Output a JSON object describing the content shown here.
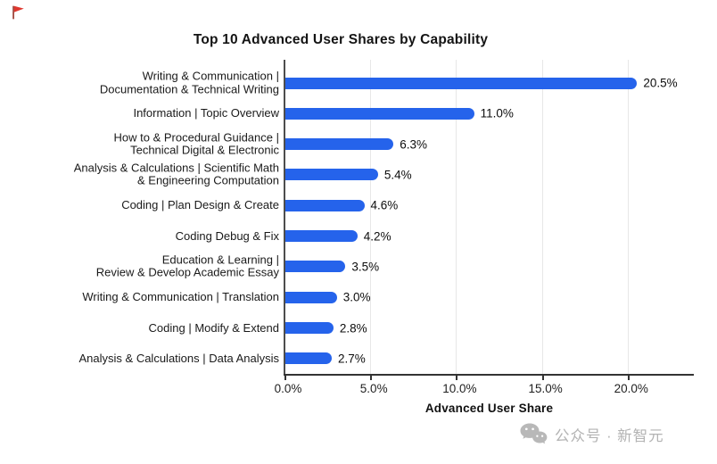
{
  "chart_data": {
    "type": "bar",
    "orientation": "horizontal",
    "title": "Top 10 Advanced User Shares by Capability",
    "xlabel": "Advanced User Share",
    "ylabel": "",
    "grid": true,
    "xlim": [
      0,
      23.8
    ],
    "x_ticks": [
      0,
      5,
      10,
      15,
      20
    ],
    "x_tick_labels": [
      "0.0%",
      "5.0%",
      "10.0%",
      "15.0%",
      "20.0%"
    ],
    "bar_color": "#2563eb",
    "categories": [
      [
        "Writing & Communication |",
        "Documentation & Technical Writing"
      ],
      [
        "Information | Topic Overview"
      ],
      [
        "How to & Procedural Guidance |",
        "Technical Digital & Electronic"
      ],
      [
        "Analysis & Calculations | Scientific Math",
        "& Engineering Computation"
      ],
      [
        "Coding | Plan Design & Create"
      ],
      [
        "Coding Debug & Fix"
      ],
      [
        "Education & Learning |",
        "Review & Develop Academic Essay"
      ],
      [
        "Writing & Communication | Translation"
      ],
      [
        "Coding | Modify & Extend"
      ],
      [
        "Analysis & Calculations | Data Analysis"
      ]
    ],
    "values": [
      20.5,
      11.0,
      6.3,
      5.4,
      4.6,
      4.2,
      3.5,
      3.0,
      2.8,
      2.7
    ],
    "value_labels": [
      "20.5%",
      "11.0%",
      "6.3%",
      "5.4%",
      "4.6%",
      "4.2%",
      "3.5%",
      "3.0%",
      "2.8%",
      "2.7%"
    ]
  },
  "watermark": {
    "icon": "wechat-icon",
    "text": "公众号 · 新智元",
    "color": "#b3b3b3"
  },
  "corner_icon": {
    "name": "red-flag-icon",
    "flag_color": "#e0372e",
    "pole_color": "#9b3c32"
  }
}
